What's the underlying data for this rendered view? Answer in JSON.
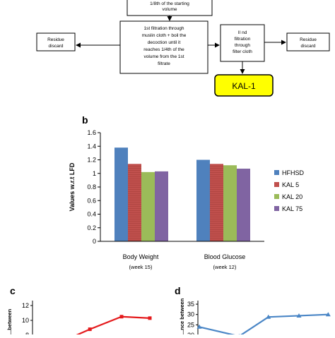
{
  "flowchart": {
    "top_box": [
      "1/8th of the starting",
      "volume"
    ],
    "first_filtration": [
      "1st filtration through",
      "muslin cloth + boil the",
      "decoction until it",
      "reaches 1/4th of the",
      "volume from the 1st",
      "filtrate"
    ],
    "second_filtration": [
      "II nd",
      "filtration",
      "through",
      "filter cloth"
    ],
    "residue_left": [
      "Residue",
      "discard"
    ],
    "residue_right": [
      "Residue",
      "discard"
    ],
    "product": "KAL-1"
  },
  "panels": {
    "b": "b",
    "c": "c",
    "d": "d"
  },
  "chart_data": [
    {
      "type": "bar",
      "ylabel": "Values w.r.t LFD",
      "ylim": [
        0,
        1.6
      ],
      "yticks": [
        "0",
        "0.2",
        "0.4",
        "0.6",
        "0.8",
        "1",
        "1.2",
        "1.4",
        "1.6"
      ],
      "categories": [
        "Body Weight",
        "Blood Glucose"
      ],
      "category_sublabels": [
        "(week 15)",
        "(week 12)"
      ],
      "series": [
        {
          "name": "HFHSD",
          "color": "#4f81bd",
          "values": [
            1.38,
            1.2
          ]
        },
        {
          "name": "KAL 5",
          "color": "#c0504d",
          "values": [
            1.14,
            1.14
          ]
        },
        {
          "name": "KAL 20",
          "color": "#9bbb59",
          "values": [
            1.02,
            1.12
          ]
        },
        {
          "name": "KAL 75",
          "color": "#8064a2",
          "values": [
            1.03,
            1.07
          ]
        }
      ],
      "legend": "right",
      "grid": false
    },
    {
      "type": "line",
      "ylabel": "...between",
      "yticks": [
        "8",
        "10",
        "12"
      ],
      "ylim": [
        7,
        12
      ],
      "series": [
        {
          "color": "#e41a1c",
          "points": [
            [
              0.15,
              7.0
            ],
            [
              0.42,
              8.8
            ],
            [
              0.7,
              10.5
            ],
            [
              0.95,
              10.3
            ]
          ]
        }
      ]
    },
    {
      "type": "line",
      "ylabel": "...nce between",
      "yticks": [
        "20",
        "25",
        "30",
        "35"
      ],
      "ylim": [
        18,
        35
      ],
      "series": [
        {
          "color": "#4a86c6",
          "points": [
            [
              0.0,
              24.0
            ],
            [
              0.3,
              19.5
            ],
            [
              0.52,
              28.8
            ],
            [
              0.75,
              29.4
            ],
            [
              0.97,
              30.0
            ]
          ]
        }
      ]
    }
  ]
}
